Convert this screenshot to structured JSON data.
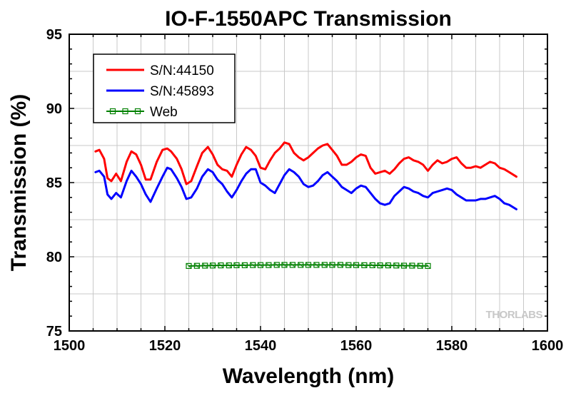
{
  "chart_data": {
    "type": "line",
    "title": "IO-F-1550APC Transmission",
    "xlabel": "Wavelength (nm)",
    "ylabel": "Transmission (%)",
    "xlim": [
      1500,
      1600
    ],
    "ylim": [
      75,
      95
    ],
    "xticks": [
      1500,
      1520,
      1540,
      1560,
      1580,
      1600
    ],
    "yticks": [
      75,
      80,
      85,
      90,
      95
    ],
    "grid": true,
    "legend_position": "top-left",
    "watermark": "THORLABS",
    "series": [
      {
        "name": "S/N:44150",
        "color": "#ff0000",
        "marker": "none",
        "x": [
          1505.5,
          1506.3,
          1507.3,
          1508.0,
          1508.8,
          1509.8,
          1510.8,
          1512.0,
          1513.0,
          1514.0,
          1515.0,
          1516.0,
          1517.0,
          1518.3,
          1519.5,
          1520.5,
          1521.3,
          1522.5,
          1523.5,
          1524.5,
          1525.5,
          1526.7,
          1527.8,
          1529.0,
          1530.0,
          1531.0,
          1532.0,
          1533.0,
          1534.0,
          1535.0,
          1536.0,
          1537.0,
          1538.0,
          1539.0,
          1540.0,
          1541.0,
          1542.0,
          1543.0,
          1544.0,
          1545.0,
          1546.0,
          1547.0,
          1548.0,
          1549.0,
          1550.0,
          1551.0,
          1552.0,
          1553.0,
          1554.0,
          1555.0,
          1556.0,
          1557.0,
          1558.0,
          1559.0,
          1560.0,
          1561.0,
          1562.0,
          1563.0,
          1564.0,
          1565.0,
          1566.0,
          1567.0,
          1568.0,
          1569.0,
          1570.0,
          1571.0,
          1572.0,
          1573.0,
          1574.0,
          1575.0,
          1576.0,
          1577.0,
          1578.0,
          1579.0,
          1580.0,
          1581.0,
          1582.0,
          1583.0,
          1584.0,
          1585.0,
          1586.0,
          1587.0,
          1588.0,
          1589.0,
          1590.0,
          1591.0,
          1592.0,
          1593.5
        ],
        "y": [
          87.1,
          87.2,
          86.6,
          85.3,
          85.1,
          85.6,
          85.1,
          86.4,
          87.1,
          86.9,
          86.2,
          85.2,
          85.2,
          86.4,
          87.2,
          87.3,
          87.1,
          86.6,
          85.9,
          84.9,
          85.1,
          86.1,
          87.0,
          87.4,
          86.9,
          86.2,
          85.9,
          85.8,
          85.4,
          86.2,
          86.9,
          87.4,
          87.2,
          86.8,
          86.0,
          85.9,
          86.5,
          87.0,
          87.3,
          87.7,
          87.6,
          87.0,
          86.7,
          86.5,
          86.7,
          87.0,
          87.3,
          87.5,
          87.6,
          87.2,
          86.8,
          86.2,
          86.2,
          86.4,
          86.7,
          86.9,
          86.8,
          86.0,
          85.6,
          85.7,
          85.8,
          85.6,
          85.9,
          86.3,
          86.6,
          86.7,
          86.5,
          86.4,
          86.2,
          85.8,
          86.2,
          86.5,
          86.3,
          86.4,
          86.6,
          86.7,
          86.3,
          86.0,
          86.0,
          86.1,
          86.0,
          86.2,
          86.4,
          86.3,
          86.0,
          85.9,
          85.7,
          85.4
        ]
      },
      {
        "name": "S/N:45893",
        "color": "#0000ff",
        "marker": "none",
        "x": [
          1505.5,
          1506.3,
          1507.3,
          1508.0,
          1508.8,
          1509.8,
          1510.8,
          1512.0,
          1513.0,
          1514.0,
          1515.0,
          1516.0,
          1517.0,
          1518.3,
          1519.5,
          1520.5,
          1521.3,
          1522.5,
          1523.5,
          1524.5,
          1525.5,
          1526.7,
          1527.8,
          1529.0,
          1530.0,
          1531.0,
          1532.0,
          1533.0,
          1534.0,
          1535.0,
          1536.0,
          1537.0,
          1538.0,
          1539.0,
          1540.0,
          1541.0,
          1542.0,
          1543.0,
          1544.0,
          1545.0,
          1546.0,
          1547.0,
          1548.0,
          1549.0,
          1550.0,
          1551.0,
          1552.0,
          1553.0,
          1554.0,
          1555.0,
          1556.0,
          1557.0,
          1558.0,
          1559.0,
          1560.0,
          1561.0,
          1562.0,
          1563.0,
          1564.0,
          1565.0,
          1566.0,
          1567.0,
          1568.0,
          1569.0,
          1570.0,
          1571.0,
          1572.0,
          1573.0,
          1574.0,
          1575.0,
          1576.0,
          1577.0,
          1578.0,
          1579.0,
          1580.0,
          1581.0,
          1582.0,
          1583.0,
          1584.0,
          1585.0,
          1586.0,
          1587.0,
          1588.0,
          1589.0,
          1590.0,
          1591.0,
          1592.0,
          1593.5
        ],
        "y": [
          85.7,
          85.8,
          85.4,
          84.2,
          83.9,
          84.3,
          84.0,
          85.1,
          85.8,
          85.4,
          84.9,
          84.2,
          83.7,
          84.6,
          85.4,
          86.0,
          85.9,
          85.3,
          84.7,
          83.9,
          84.0,
          84.6,
          85.4,
          85.9,
          85.7,
          85.2,
          84.9,
          84.4,
          84.0,
          84.5,
          85.1,
          85.6,
          85.9,
          85.9,
          85.0,
          84.8,
          84.5,
          84.3,
          84.9,
          85.5,
          85.9,
          85.7,
          85.4,
          84.9,
          84.7,
          84.8,
          85.1,
          85.5,
          85.7,
          85.4,
          85.1,
          84.7,
          84.5,
          84.3,
          84.6,
          84.8,
          84.7,
          84.3,
          83.9,
          83.6,
          83.5,
          83.6,
          84.1,
          84.4,
          84.7,
          84.6,
          84.4,
          84.3,
          84.1,
          84.0,
          84.3,
          84.4,
          84.5,
          84.6,
          84.5,
          84.2,
          84.0,
          83.8,
          83.8,
          83.8,
          83.9,
          83.9,
          84.0,
          84.1,
          83.9,
          83.6,
          83.5,
          83.2
        ]
      },
      {
        "name": "Web",
        "color": "#008000",
        "marker": "square",
        "x": [
          1525,
          1526.7,
          1528.4,
          1530.0,
          1531.7,
          1533.4,
          1535.0,
          1536.7,
          1538.4,
          1540.0,
          1541.7,
          1543.4,
          1545.0,
          1546.7,
          1548.4,
          1550.0,
          1551.7,
          1553.4,
          1555.0,
          1556.7,
          1558.4,
          1560.0,
          1561.7,
          1563.4,
          1565.0,
          1566.7,
          1568.4,
          1570.0,
          1571.7,
          1573.4,
          1575.0
        ],
        "y": [
          79.38,
          79.39,
          79.4,
          79.41,
          79.42,
          79.42,
          79.43,
          79.43,
          79.44,
          79.44,
          79.44,
          79.45,
          79.45,
          79.45,
          79.45,
          79.45,
          79.45,
          79.45,
          79.45,
          79.45,
          79.44,
          79.44,
          79.43,
          79.43,
          79.42,
          79.42,
          79.41,
          79.4,
          79.4,
          79.39,
          79.38
        ]
      }
    ]
  }
}
